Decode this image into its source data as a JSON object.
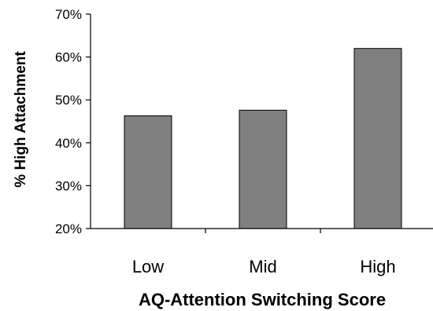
{
  "chart_data": {
    "type": "bar",
    "categories": [
      "Low",
      "Mid",
      "High"
    ],
    "values": [
      46.3,
      47.6,
      62.0
    ],
    "xlabel": "AQ-Attention Switching Score",
    "ylabel": "% High Attachment",
    "ylim": [
      20,
      70
    ],
    "yticks": [
      20,
      30,
      40,
      50,
      60,
      70
    ],
    "ytick_labels": [
      "20%",
      "30%",
      "40%",
      "50%",
      "60%",
      "70%"
    ],
    "grid": false,
    "legend": "none",
    "bar_color": "#808080",
    "bar_edge_color": "#000000"
  }
}
